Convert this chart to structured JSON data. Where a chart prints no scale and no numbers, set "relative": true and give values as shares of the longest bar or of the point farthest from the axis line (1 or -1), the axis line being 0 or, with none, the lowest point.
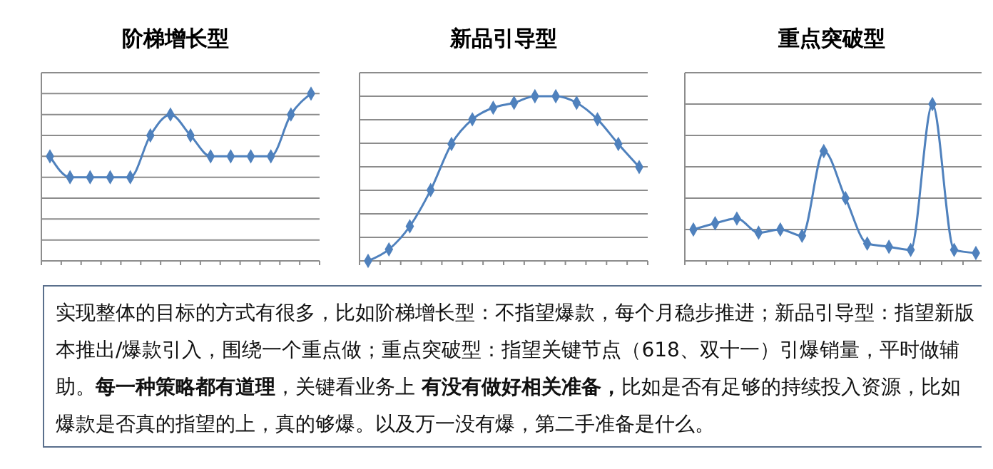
{
  "chart_data": [
    {
      "type": "line",
      "title": "阶梯增长型",
      "relative": true,
      "grid": "y",
      "marker": "diamond",
      "categories": [
        null,
        null,
        null,
        null,
        null,
        null,
        null,
        null,
        null,
        null,
        null,
        null,
        null,
        null
      ],
      "series": [
        {
          "color": "#4f81bd",
          "values": [
            0.625,
            0.5,
            0.5,
            0.5,
            0.5,
            0.75,
            0.875,
            0.75,
            0.625,
            0.625,
            0.625,
            0.625,
            0.875,
            1
          ]
        }
      ]
    },
    {
      "type": "line",
      "title": "新品引导型",
      "relative": true,
      "grid": "y",
      "marker": "diamond",
      "categories": [
        null,
        null,
        null,
        null,
        null,
        null,
        null,
        null,
        null,
        null,
        null,
        null,
        null,
        null
      ],
      "series": [
        {
          "color": "#4f81bd",
          "values": [
            0,
            0.07,
            0.21,
            0.43,
            0.71,
            0.86,
            0.93,
            0.96,
            1,
            1,
            0.96,
            0.86,
            0.71,
            0.57
          ]
        }
      ]
    },
    {
      "type": "line",
      "title": "重点突破型",
      "relative": true,
      "grid": "y",
      "marker": "diamond",
      "categories": [
        null,
        null,
        null,
        null,
        null,
        null,
        null,
        null,
        null,
        null,
        null,
        null,
        null,
        null
      ],
      "series": [
        {
          "color": "#4f81bd",
          "values": [
            0.2,
            0.24,
            0.27,
            0.18,
            0.2,
            0.16,
            0.7,
            0.4,
            0.11,
            0.09,
            0.07,
            1,
            0.07,
            0.05
          ]
        }
      ]
    },
    {
      "type": "other",
      "annotations": [
        "实现整体的目标的方式有很多，比如阶梯增长型：不指望爆款，每个月稳步推进；新品引导型：指望新版本推出/爆款引入，围绕一个重点做；重点突破型：指望关键节点（618、双十一）引爆销量，平时做辅助。",
        "每一种策略都有道理",
        "，关键看业务上 ",
        "有没有做好相关准备，",
        "比如是否有足够的持续投入资源，比如爆款是否真的指望的上，真的够爆。以及万一没有爆，第二手准备是什么。"
      ]
    }
  ]
}
